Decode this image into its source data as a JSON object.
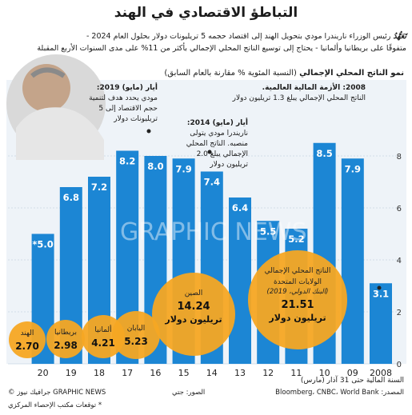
{
  "title": "التباطؤ الاقتصادي في الهند",
  "subtitle_lead": "تَعَهُّدُ",
  "subtitle_line1": " رئيس الوزراء ناريندرا مودي بتحويل الهند إلى اقتصاد حجمه 5 تريليونات دولار بحلول العام 2024 -",
  "subtitle_line2": "متفوقًا على بريطانيا وألمانيا - يحتاج إلى توسيع الناتج المحلي الإجمالي بأكثر من 11% على مدى السنوات الأربع المقبلة",
  "series_label_bold": "نمو الناتج المحلي الإجمالي",
  "series_label_rest": " (النسبة المئوية % مقارنة بالعام السابق)",
  "annotations": {
    "a2008_title": "2008: الأزمة المالية العالمية.",
    "a2008_body": "الناتج المحلي الإجمالي يبلغ 1.3 تريليون دولار",
    "a2014_title": "أيار (مايو) 2014:",
    "a2014_body": "ناريندرا مودي يتولى منصبه. الناتج المحلي الإجمالي يبلغ 2.0 تريليون دولار",
    "a2019_title": "أيار (مايو) 2019:",
    "a2019_body": "مودي يحدد هدف لتنمية حجم الاقتصاد إلى 5 تريليونات دولار"
  },
  "gdp_bubbles_title": "الناتج المحلي الإجمالي",
  "gdp_bubbles": [
    {
      "country": "الولايات المتحدة",
      "note": "(البنك الدولي، 2019)",
      "value": "21.51",
      "unit": "تريليون دولار"
    },
    {
      "country": "الصين",
      "value": "14.24",
      "unit": "تريليون دولار"
    },
    {
      "country": "اليابان",
      "value": "5.23"
    },
    {
      "country": "ألمانيا",
      "value": "4.21"
    },
    {
      "country": "بريطانيا",
      "value": "2.98"
    },
    {
      "country": "الهند",
      "value": "2.70"
    }
  ],
  "x_axis_title": "السنة المالية حتى 31 آذار (مارس)",
  "footnote": "* توقعات مكتب الإحصاء المركزي",
  "source_left": "الصور: جتي",
  "source_right": "المصدر: Bloomberg، CNBC، World Bank",
  "credit": "© جرافيك نيوز GRAPHIC NEWS",
  "watermark": "GRAPHIC NEWS",
  "colors": {
    "bar": "#1c86d4",
    "bar_light": "#a7d3f3",
    "bubble": "#f6a623",
    "title_text": "#1c1c1c"
  },
  "chart_data": {
    "type": "bar",
    "title": "نمو الناتج المحلي الإجمالي",
    "ylabel": "(النسبة المئوية % مقارنة بالعام السابق)",
    "categories": [
      "2008",
      "09",
      "10",
      "11",
      "12",
      "13",
      "14",
      "15",
      "16",
      "17",
      "18",
      "19",
      "20"
    ],
    "values": [
      3.1,
      7.9,
      8.5,
      5.2,
      5.5,
      6.4,
      7.4,
      7.9,
      8.0,
      8.2,
      7.2,
      6.8,
      5.0
    ],
    "value_labels": [
      "3.1",
      "7.9",
      "8.5",
      "5.2",
      "5.5",
      "6.4",
      "7.4",
      "7.9",
      "8.0",
      "8.2",
      "7.2",
      "6.8",
      "*5.0"
    ],
    "yticks": [
      0,
      2,
      4,
      6,
      8
    ],
    "ylim": [
      0,
      10
    ]
  }
}
